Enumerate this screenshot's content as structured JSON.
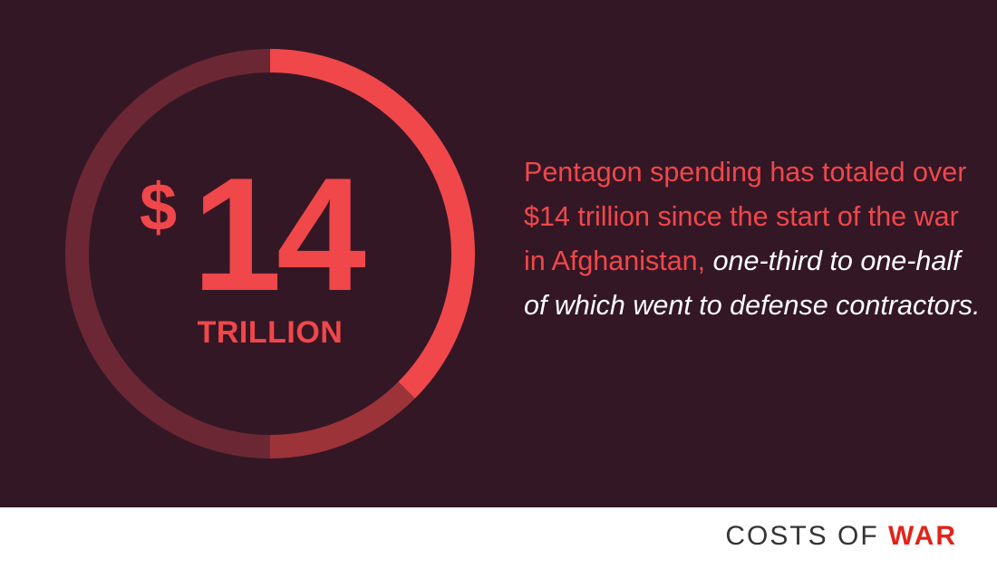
{
  "headline": {
    "currency": "$",
    "number": "14",
    "unit": "TRILLION"
  },
  "ring": {
    "segments": [
      {
        "fraction": 0.375,
        "color": "#f0474b"
      },
      {
        "fraction": 0.125,
        "color": "#9c3339"
      },
      {
        "fraction": 0.5,
        "color": "#6b2834"
      }
    ]
  },
  "statement": {
    "lead": "Pentagon spending has totaled over $14 trillion since the start of the war in Afghanistan,",
    "emphasis": "one-third to one-half of which went to defense contractors."
  },
  "footer": {
    "brand_part1": "COSTS OF",
    "brand_part2": "WAR"
  },
  "colors": {
    "background": "#341725",
    "accent": "#f0474b",
    "brand": "#e2231a"
  }
}
